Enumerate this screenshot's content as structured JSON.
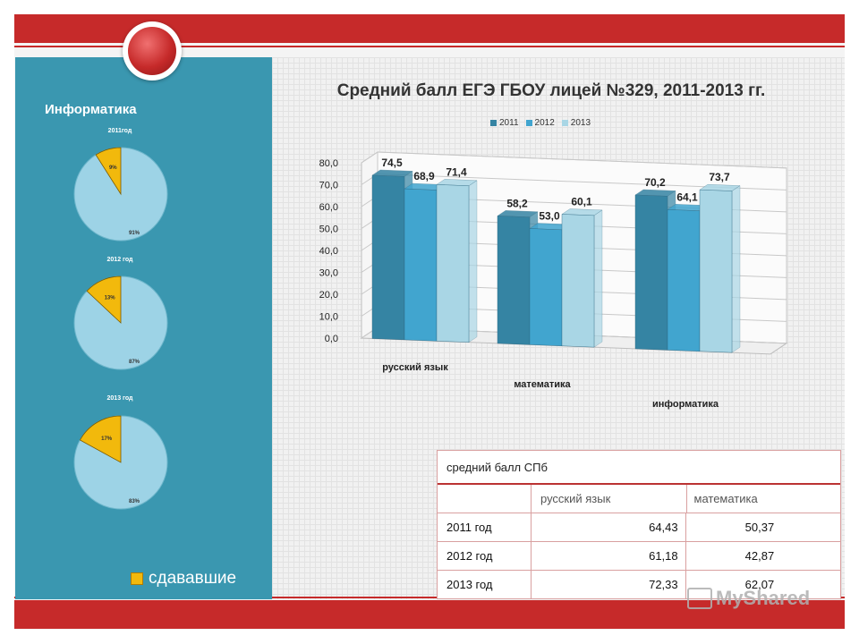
{
  "panel": {
    "title": "Информатика",
    "legend_label": "сдававшие",
    "pies": [
      {
        "title": "2011год",
        "small_label": "9%",
        "large_label": "91%",
        "small_value": 9
      },
      {
        "title": "2012 год",
        "small_label": "13%",
        "large_label": "87%",
        "small_value": 13
      },
      {
        "title": "2013 год",
        "small_label": "17%",
        "large_label": "83%",
        "small_value": 17
      }
    ],
    "colors": {
      "small": "#f2b90c",
      "large": "#9dd3e6"
    }
  },
  "chart_data": {
    "type": "bar",
    "title": "Средний балл ЕГЭ ГБОУ лицей №329, 2011-2013 гг.",
    "categories": [
      "русский язык",
      "математика",
      "информатика"
    ],
    "series": [
      {
        "name": "2011",
        "values": [
          74.5,
          58.2,
          70.2
        ],
        "labels": [
          "74,5",
          "58,2",
          "70,2"
        ],
        "color": "#3584a3"
      },
      {
        "name": "2012",
        "values": [
          68.9,
          53.0,
          64.1
        ],
        "labels": [
          "68,9",
          "53,0",
          "64,1"
        ],
        "color": "#41a5cf"
      },
      {
        "name": "2013",
        "values": [
          71.4,
          60.1,
          73.7
        ],
        "labels": [
          "71,4",
          "60,1",
          "73,7"
        ],
        "color": "#a9d6e5"
      }
    ],
    "y_ticks": [
      "80,0",
      "70,0",
      "60,0",
      "50,0",
      "40,0",
      "30,0",
      "20,0",
      "10,0",
      "0,0"
    ],
    "ylim": [
      0,
      80
    ],
    "grid": true,
    "legend_position": "top"
  },
  "table": {
    "title": "средний балл СПб",
    "columns": [
      "русский язык",
      "математика"
    ],
    "rows": [
      {
        "year": "2011 год",
        "russian": "64,43",
        "math": "50,37"
      },
      {
        "year": "2012 год",
        "russian": "61,18",
        "math": "42,87"
      },
      {
        "year": "2013 год",
        "russian": "72,33",
        "math": "62,07"
      }
    ]
  },
  "watermark": "MyShared"
}
